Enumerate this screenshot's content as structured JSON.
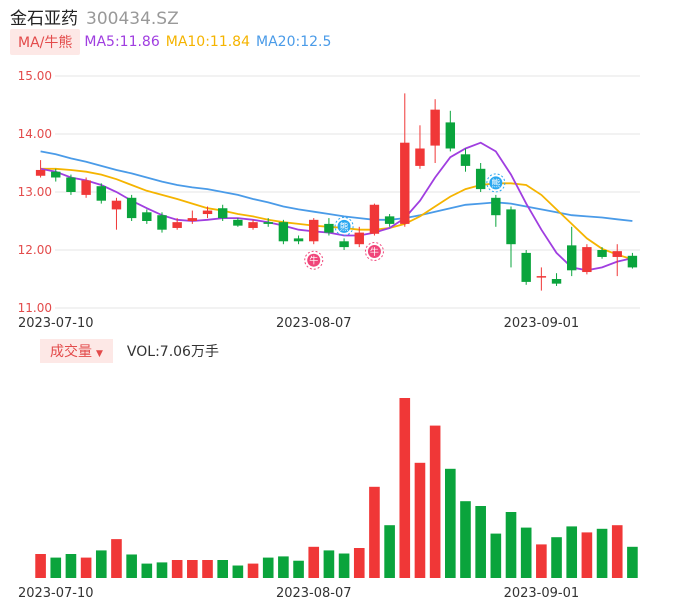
{
  "header": {
    "name": "金石亚药",
    "code": "300434.SZ"
  },
  "ma_legend": {
    "badge": "MA/牛熊",
    "items": [
      {
        "text": "MA5:11.86",
        "color": "#a03ee0"
      },
      {
        "text": "MA10:11.84",
        "color": "#f5b400"
      },
      {
        "text": "MA20:12.5",
        "color": "#4a9be8"
      }
    ]
  },
  "volume_legend": {
    "badge": "成交量",
    "text": "VOL:7.06万手"
  },
  "colors": {
    "up": "#f03737",
    "down": "#0aa43c",
    "ma5": "#a03ee0",
    "ma10": "#f5b400",
    "ma20": "#4a9be8"
  },
  "chart_data": {
    "type": "candlestick",
    "y_ticks": [
      "15.00",
      "14.00",
      "13.00",
      "12.00",
      "11.00"
    ],
    "ylim": [
      11.0,
      15.0
    ],
    "x_ticks": [
      {
        "label": "2023-07-10",
        "index": 1
      },
      {
        "label": "2023-08-07",
        "index": 18
      },
      {
        "label": "2023-09-01",
        "index": 33
      }
    ],
    "candles": [
      {
        "o": 13.28,
        "c": 13.38,
        "h": 13.55,
        "l": 13.25
      },
      {
        "o": 13.35,
        "c": 13.25,
        "h": 13.4,
        "l": 13.18
      },
      {
        "o": 13.25,
        "c": 13.0,
        "h": 13.3,
        "l": 12.95
      },
      {
        "o": 12.95,
        "c": 13.2,
        "h": 13.25,
        "l": 12.9
      },
      {
        "o": 13.1,
        "c": 12.85,
        "h": 13.15,
        "l": 12.8
      },
      {
        "o": 12.7,
        "c": 12.85,
        "h": 12.9,
        "l": 12.35
      },
      {
        "o": 12.9,
        "c": 12.55,
        "h": 12.95,
        "l": 12.5
      },
      {
        "o": 12.65,
        "c": 12.5,
        "h": 12.7,
        "l": 12.45
      },
      {
        "o": 12.6,
        "c": 12.35,
        "h": 12.65,
        "l": 12.3
      },
      {
        "o": 12.38,
        "c": 12.48,
        "h": 12.55,
        "l": 12.35
      },
      {
        "o": 12.5,
        "c": 12.55,
        "h": 12.68,
        "l": 12.45
      },
      {
        "o": 12.62,
        "c": 12.68,
        "h": 12.75,
        "l": 12.55
      },
      {
        "o": 12.72,
        "c": 12.55,
        "h": 12.78,
        "l": 12.5
      },
      {
        "o": 12.52,
        "c": 12.42,
        "h": 12.55,
        "l": 12.4
      },
      {
        "o": 12.38,
        "c": 12.48,
        "h": 12.52,
        "l": 12.35
      },
      {
        "o": 12.48,
        "c": 12.45,
        "h": 12.55,
        "l": 12.4
      },
      {
        "o": 12.48,
        "c": 12.15,
        "h": 12.52,
        "l": 12.1
      },
      {
        "o": 12.2,
        "c": 12.15,
        "h": 12.25,
        "l": 12.1
      },
      {
        "o": 12.15,
        "c": 12.52,
        "h": 12.55,
        "l": 12.1
      },
      {
        "o": 12.45,
        "c": 12.3,
        "h": 12.55,
        "l": 12.25
      },
      {
        "o": 12.15,
        "c": 12.05,
        "h": 12.2,
        "l": 12.0
      },
      {
        "o": 12.1,
        "c": 12.3,
        "h": 12.4,
        "l": 12.05
      },
      {
        "o": 12.28,
        "c": 12.78,
        "h": 12.8,
        "l": 12.25
      },
      {
        "o": 12.58,
        "c": 12.45,
        "h": 12.62,
        "l": 12.4
      },
      {
        "o": 12.45,
        "c": 13.85,
        "h": 14.7,
        "l": 12.4
      },
      {
        "o": 13.45,
        "c": 13.75,
        "h": 14.15,
        "l": 13.4
      },
      {
        "o": 13.8,
        "c": 14.42,
        "h": 14.6,
        "l": 13.5
      },
      {
        "o": 14.2,
        "c": 13.75,
        "h": 14.4,
        "l": 13.7
      },
      {
        "o": 13.65,
        "c": 13.45,
        "h": 13.75,
        "l": 13.35
      },
      {
        "o": 13.4,
        "c": 13.05,
        "h": 13.5,
        "l": 13.0
      },
      {
        "o": 12.9,
        "c": 12.6,
        "h": 12.95,
        "l": 12.4
      },
      {
        "o": 12.7,
        "c": 12.1,
        "h": 12.75,
        "l": 11.7
      },
      {
        "o": 11.95,
        "c": 11.45,
        "h": 12.0,
        "l": 11.4
      },
      {
        "o": 11.55,
        "c": 11.55,
        "h": 11.7,
        "l": 11.3
      },
      {
        "o": 11.5,
        "c": 11.42,
        "h": 11.6,
        "l": 11.38
      },
      {
        "o": 12.08,
        "c": 11.65,
        "h": 12.4,
        "l": 11.55
      },
      {
        "o": 11.62,
        "c": 12.05,
        "h": 12.1,
        "l": 11.58
      },
      {
        "o": 12.0,
        "c": 11.88,
        "h": 12.05,
        "l": 11.85
      },
      {
        "o": 11.88,
        "c": 11.98,
        "h": 12.1,
        "l": 11.55
      },
      {
        "o": 11.9,
        "c": 11.7,
        "h": 11.95,
        "l": 11.68
      }
    ],
    "ma5": [
      13.4,
      13.35,
      13.25,
      13.2,
      13.12,
      13.0,
      12.85,
      12.72,
      12.6,
      12.52,
      12.5,
      12.52,
      12.55,
      12.55,
      12.52,
      12.48,
      12.42,
      12.35,
      12.32,
      12.3,
      12.25,
      12.25,
      12.3,
      12.38,
      12.55,
      12.85,
      13.25,
      13.6,
      13.75,
      13.85,
      13.7,
      13.3,
      12.8,
      12.35,
      11.95,
      11.7,
      11.65,
      11.7,
      11.8,
      11.86
    ],
    "ma10": [
      13.4,
      13.4,
      13.38,
      13.35,
      13.3,
      13.22,
      13.12,
      13.02,
      12.95,
      12.88,
      12.8,
      12.72,
      12.68,
      12.62,
      12.58,
      12.52,
      12.48,
      12.45,
      12.42,
      12.4,
      12.38,
      12.35,
      12.35,
      12.38,
      12.45,
      12.58,
      12.75,
      12.92,
      13.05,
      13.12,
      13.15,
      13.15,
      13.12,
      12.95,
      12.7,
      12.45,
      12.2,
      12.02,
      11.92,
      11.84
    ],
    "ma20": [
      13.7,
      13.65,
      13.58,
      13.52,
      13.45,
      13.38,
      13.32,
      13.25,
      13.18,
      13.12,
      13.08,
      13.05,
      13.0,
      12.95,
      12.88,
      12.82,
      12.75,
      12.7,
      12.66,
      12.62,
      12.58,
      12.55,
      12.52,
      12.52,
      12.55,
      12.6,
      12.66,
      12.72,
      12.78,
      12.8,
      12.82,
      12.8,
      12.75,
      12.7,
      12.65,
      12.6,
      12.58,
      12.56,
      12.53,
      12.5
    ],
    "volume": [
      1.0,
      0.85,
      1.0,
      0.85,
      1.15,
      1.62,
      0.98,
      0.6,
      0.65,
      0.75,
      0.75,
      0.75,
      0.75,
      0.52,
      0.6,
      0.85,
      0.9,
      0.72,
      1.3,
      1.15,
      1.02,
      1.25,
      3.8,
      2.2,
      7.5,
      4.8,
      6.35,
      4.55,
      3.2,
      3.0,
      1.85,
      2.75,
      2.1,
      1.4,
      1.7,
      2.15,
      1.9,
      2.05,
      2.2,
      1.3
    ],
    "markers": [
      {
        "index": 18,
        "type": "bull",
        "glyph": "牛"
      },
      {
        "index": 22,
        "type": "bull",
        "glyph": "牛"
      },
      {
        "index": 20,
        "type": "bear",
        "glyph": "熊"
      },
      {
        "index": 30,
        "type": "bear",
        "glyph": "熊"
      }
    ]
  }
}
